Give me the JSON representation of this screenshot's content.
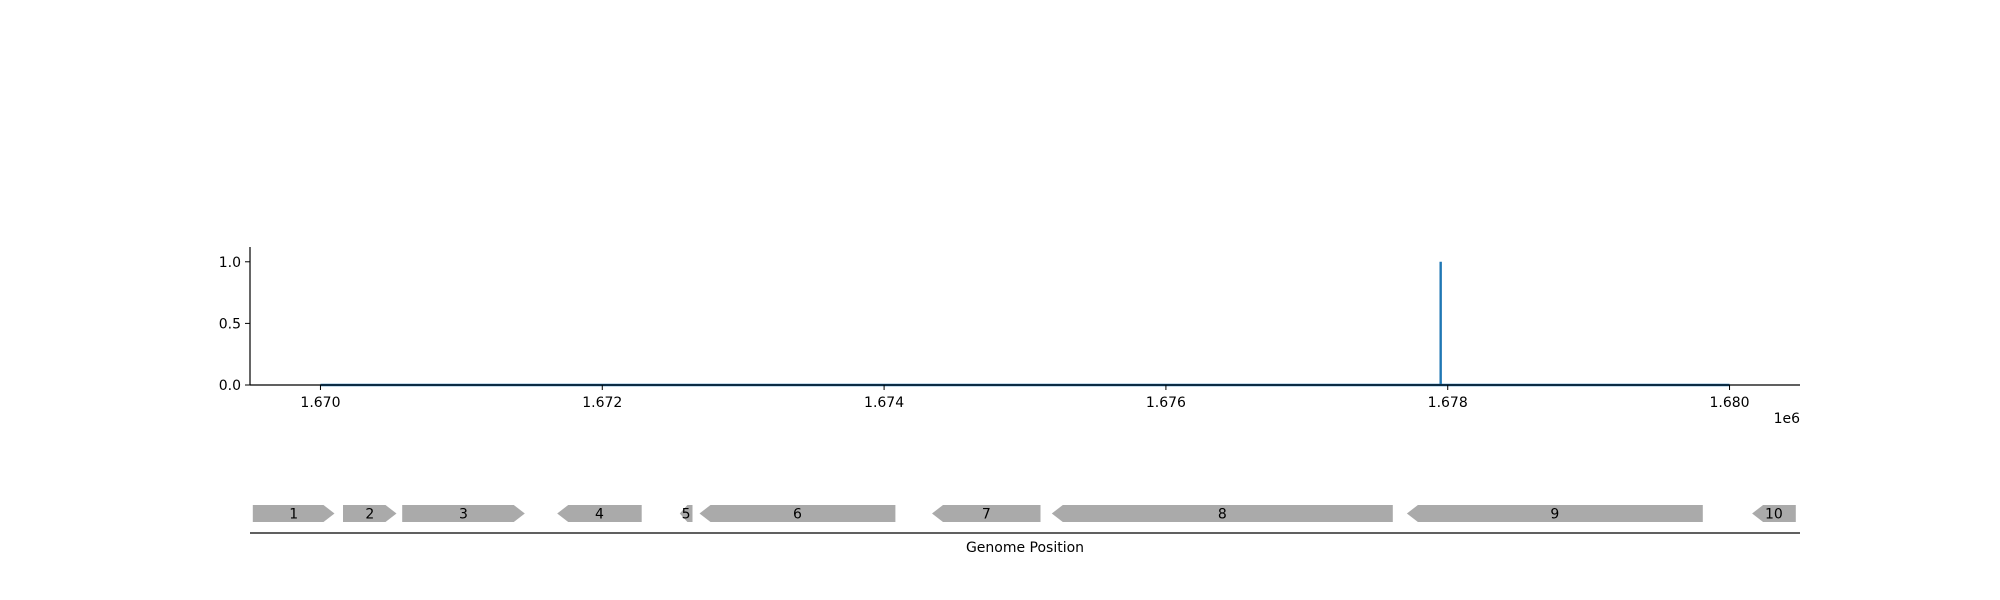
{
  "chart_data": [
    {
      "type": "line",
      "title": "",
      "xlabel": "",
      "ylabel": "",
      "x_offset_label": "1e6",
      "xlim": [
        1669500,
        1680500
      ],
      "ylim": [
        0,
        1.12
      ],
      "xticks": [
        1670000,
        1672000,
        1674000,
        1676000,
        1678000,
        1680000
      ],
      "xtick_labels": [
        "1.670",
        "1.672",
        "1.674",
        "1.676",
        "1.678",
        "1.680"
      ],
      "yticks": [
        0.0,
        0.5,
        1.0
      ],
      "ytick_labels": [
        "0.0",
        "0.5",
        "1.0"
      ],
      "grid": false,
      "line_color": "#1f77b4",
      "series": [
        {
          "x": [
            1670000,
            1677950,
            1677950,
            1677950,
            1677950,
            1680000
          ],
          "y": [
            0,
            0,
            1.0,
            1.0,
            0,
            0
          ]
        }
      ]
    },
    {
      "type": "gene-track",
      "xlabel": "Genome Position",
      "xlim": [
        1669500,
        1680500
      ],
      "gene_color": "#aaaaaa",
      "genes": [
        {
          "label": "1",
          "start": 1669520,
          "end": 1670100,
          "strand": "+"
        },
        {
          "label": "2",
          "start": 1670160,
          "end": 1670540,
          "strand": "+"
        },
        {
          "label": "3",
          "start": 1670580,
          "end": 1671450,
          "strand": "+"
        },
        {
          "label": "4",
          "start": 1671680,
          "end": 1672280,
          "strand": "-"
        },
        {
          "label": "5",
          "start": 1672550,
          "end": 1672640,
          "strand": "-"
        },
        {
          "label": "6",
          "start": 1672690,
          "end": 1674080,
          "strand": "-"
        },
        {
          "label": "7",
          "start": 1674340,
          "end": 1675110,
          "strand": "-"
        },
        {
          "label": "8",
          "start": 1675190,
          "end": 1677610,
          "strand": "-"
        },
        {
          "label": "9",
          "start": 1677710,
          "end": 1679810,
          "strand": "-"
        },
        {
          "label": "10",
          "start": 1680160,
          "end": 1680470,
          "strand": "-"
        }
      ]
    }
  ]
}
